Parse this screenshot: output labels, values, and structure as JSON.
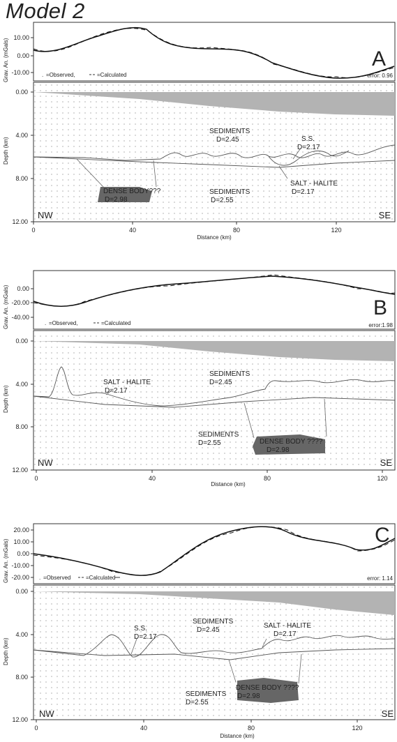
{
  "title": "Model 2",
  "colors": {
    "water": "#b3b3b3",
    "dense_body": "#666666",
    "line": "#444444",
    "dots": "#8a8a8a"
  },
  "panels": [
    {
      "letter": "A",
      "grav_ylabel": "Grav. An. (mGals)",
      "grav_ticks": [
        "10.00",
        "0.00",
        "-10.00"
      ],
      "legend_observed": "=Observed,",
      "legend_calculated": "=Calculated",
      "error": "error: 0.96",
      "depth_ticks": [
        "0.00",
        "4.00",
        "8.00",
        "12.00"
      ],
      "depth_label": "Depth (km)",
      "dist_ticks": [
        "0",
        "40",
        "80",
        "120"
      ],
      "xlabel": "Distance (km)",
      "nw": "NW",
      "se": "SE",
      "labels": {
        "sed1_name": "SEDIMENTS",
        "sed1_d": "D=2.45",
        "ss_name": "S.S.",
        "ss_d": "D=2.17",
        "salt_name": "SALT - HALITE",
        "salt_d": "D=2.17",
        "dense_name": "DENSE BODY???",
        "dense_d": "D=2.98",
        "sed2_name": "SEDIMENTS",
        "sed2_d": "D=2.55"
      }
    },
    {
      "letter": "B",
      "grav_ylabel": "Grav. An. (mGals)",
      "grav_ticks": [
        "0.00",
        "-20.00",
        "-40.00"
      ],
      "legend_observed": "=Observed,",
      "legend_calculated": "=Calculated",
      "error": "error:1.98",
      "depth_ticks": [
        "0.00",
        "4.00",
        "8.00",
        "12.00"
      ],
      "depth_label": "Depth (km)",
      "dist_ticks": [
        "0",
        "40",
        "80",
        "120"
      ],
      "xlabel": "Distance (km)",
      "nw": "NW",
      "se": "SE",
      "labels": {
        "salt_name": "SALT - HALITE",
        "salt_d": "D=2.17",
        "sed1_name": "SEDIMENTS",
        "sed1_d": "D=2.45",
        "sed2_name": "SEDIMENTS",
        "sed2_d": "D=2.55",
        "dense_name": "DENSE BODY ????",
        "dense_d": "D=2.98"
      }
    },
    {
      "letter": "C",
      "grav_ylabel": "Grav. An. (mGals)",
      "grav_ticks": [
        "20.00",
        "10.00",
        "0.00",
        "-10.00",
        "-20.00"
      ],
      "legend_observed": "=Observed",
      "legend_calculated": "=Calculated",
      "error": "error: 1.14",
      "depth_ticks": [
        "0.00",
        "4.00",
        "8.00",
        "12.00"
      ],
      "depth_label": "Depth (km)",
      "dist_ticks": [
        "0",
        "40",
        "80",
        "120"
      ],
      "xlabel": "Distance (km)",
      "nw": "NW",
      "se": "SE",
      "labels": {
        "ss_name": "S.S.",
        "ss_d": "D=2.17",
        "sed1_name": "SEDIMENTS",
        "sed1_d": "D=2.45",
        "salt_name": "SALT - HALITE",
        "salt_d": "D=2.17",
        "sed2_name": "SEDIMENTS",
        "sed2_d": "D=2.55",
        "dense_name": "DENSE BODY ????",
        "dense_d": "D=2.98"
      }
    }
  ]
}
